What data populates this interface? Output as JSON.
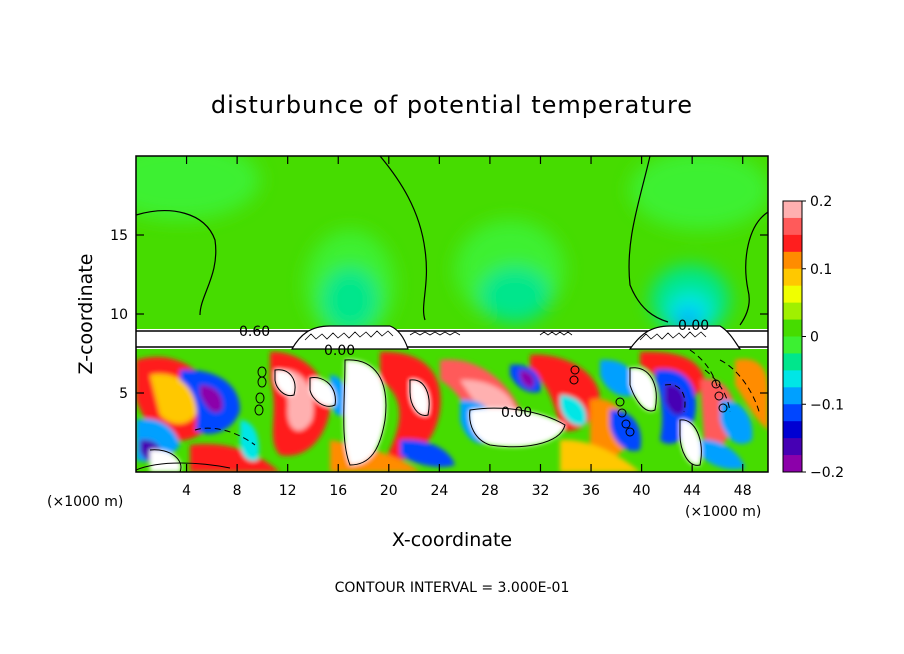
{
  "chart_data": {
    "type": "heatmap",
    "title": "disturbunce of potential temperature",
    "xlabel": "X-coordinate",
    "ylabel": "Z-coordinate",
    "x_unit": "(×1000 m)",
    "xlim": [
      0,
      50
    ],
    "ylim": [
      0,
      20
    ],
    "x_ticks": [
      4,
      8,
      12,
      16,
      20,
      24,
      28,
      32,
      36,
      40,
      44,
      48
    ],
    "y_ticks": [
      5,
      10,
      15
    ],
    "colorbar": {
      "range": [
        -0.2,
        0.2
      ],
      "ticks": [
        "0.2",
        "0.1",
        "0",
        "−0.1",
        "−0.2"
      ],
      "colors": [
        "#ffb0b0",
        "#ff5a5a",
        "#ff1e1e",
        "#ff8c00",
        "#ffc800",
        "#f0ff00",
        "#a0f000",
        "#46dc00",
        "#3cf032",
        "#00e68c",
        "#00e6e6",
        "#00a0ff",
        "#0046ff",
        "#0000d2",
        "#4600b4",
        "#8c00aa"
      ]
    },
    "contour_labels": [
      {
        "text": "0.60",
        "x": 9.5,
        "z": 9.0
      },
      {
        "text": "0.00",
        "x": 16.5,
        "z": 7.8
      },
      {
        "text": "0.00",
        "x": 30.0,
        "z": 3.7
      },
      {
        "text": "0.00",
        "x": 44.5,
        "z": 9.3
      }
    ],
    "footer": "CONTOUR INTERVAL = 3.000E-01"
  }
}
